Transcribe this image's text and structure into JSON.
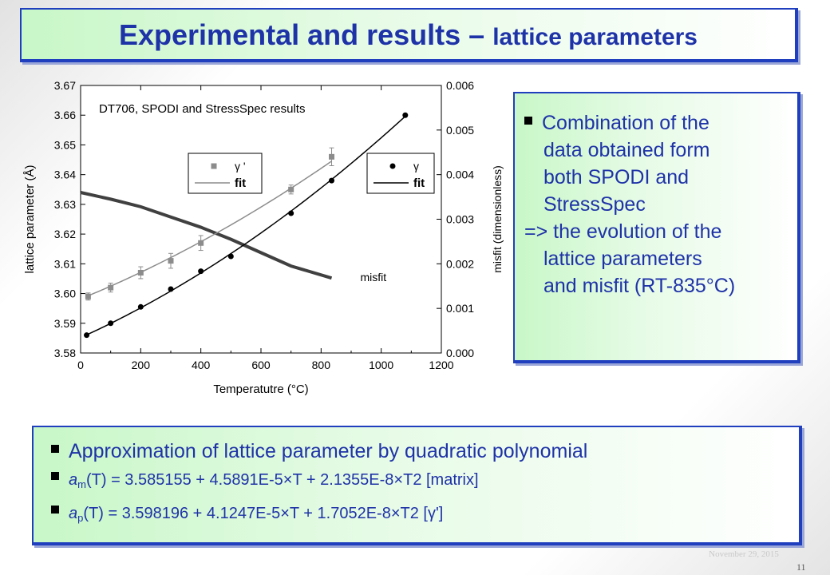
{
  "slide": {
    "title_main": "Experimental and results – ",
    "title_sub": "lattice parameters",
    "footer_date": "November 29, 2015",
    "page_number": "11"
  },
  "summary_box": {
    "bullet_line1": "Combination of the",
    "line2": "data obtained form",
    "line3": "both SPODI and",
    "line4": "StressSpec",
    "arrow_line": "=>  the evolution of the",
    "line6": "lattice parameters",
    "line7": "and misfit (RT-835°C)"
  },
  "approximation_box": {
    "heading": "Approximation of lattice parameter by quadratic polynomial",
    "eq_m_a": "a",
    "eq_m_sub": "m",
    "eq_m_rest": "(T) = 3.585155 + 4.5891E-5×T + 2.1355E-8×T2    [matrix]",
    "eq_p_a": "a",
    "eq_p_sub": "p",
    "eq_p_rest": "(T) = 3.598196 + 4.1247E-5×T + 1.7052E-8×T2     [γ']"
  },
  "colors": {
    "title_text": "#1f33a8",
    "box_border": "#1f3fbf",
    "gamma_prime_series": "#8c8c8c",
    "gamma_series": "#000000",
    "misfit_curve": "#404040"
  },
  "chart_data": {
    "type": "scatter",
    "annotation": "DT706, SPODI and StressSpec results",
    "xlabel": "Temperatutre (°C)",
    "ylabel": "lattice parameter (Å)",
    "y2label": "misfit (dimensionless)",
    "xlim": [
      0,
      1200
    ],
    "ylim": [
      3.58,
      3.67
    ],
    "y2lim": [
      0,
      0.006
    ],
    "xticks": [
      "0",
      "200",
      "400",
      "600",
      "800",
      "1000",
      "1200"
    ],
    "yticks": [
      "3.58",
      "3.59",
      "3.60",
      "3.61",
      "3.62",
      "3.63",
      "3.64",
      "3.65",
      "3.66",
      "3.67"
    ],
    "y2ticks": [
      "0.000",
      "0.001",
      "0.002",
      "0.003",
      "0.004",
      "0.005",
      "0.006"
    ],
    "grid": false,
    "series": [
      {
        "name": "γ '",
        "marker": "square",
        "color": "#8c8c8c",
        "axis": "left",
        "points": [
          {
            "x": 25,
            "y": 3.599,
            "err": 0.0012
          },
          {
            "x": 100,
            "y": 3.602,
            "err": 0.0015
          },
          {
            "x": 200,
            "y": 3.607,
            "err": 0.002
          },
          {
            "x": 300,
            "y": 3.611,
            "err": 0.0025
          },
          {
            "x": 400,
            "y": 3.617,
            "err": 0.0025
          },
          {
            "x": 700,
            "y": 3.635,
            "err": 0.0015
          },
          {
            "x": 835,
            "y": 3.646,
            "err": 0.003
          }
        ]
      },
      {
        "name": "γ",
        "marker": "circle",
        "color": "#000000",
        "axis": "left",
        "points": [
          {
            "x": 20,
            "y": 3.586
          },
          {
            "x": 100,
            "y": 3.59
          },
          {
            "x": 200,
            "y": 3.5955
          },
          {
            "x": 300,
            "y": 3.6015
          },
          {
            "x": 400,
            "y": 3.6075
          },
          {
            "x": 500,
            "y": 3.6125
          },
          {
            "x": 700,
            "y": 3.627
          },
          {
            "x": 835,
            "y": 3.638
          },
          {
            "x": 1080,
            "y": 3.66
          }
        ]
      }
    ],
    "fits": [
      {
        "name": "fit",
        "for": "γ '",
        "a0": 3.598196,
        "a1": 4.1247e-05,
        "a2": 1.7052e-08,
        "from": 25,
        "to": 835
      },
      {
        "name": "fit",
        "for": "γ",
        "a0": 3.585155,
        "a1": 4.5891e-05,
        "a2": 2.1355e-08,
        "from": 20,
        "to": 1080
      }
    ],
    "misfit_curve": {
      "label": "misfit",
      "axis": "right",
      "x": [
        0,
        100,
        200,
        300,
        400,
        500,
        600,
        700,
        835
      ],
      "y": [
        0.0036,
        0.00345,
        0.00328,
        0.00305,
        0.00282,
        0.00255,
        0.00225,
        0.00195,
        0.00168
      ]
    },
    "legends": [
      {
        "position": "middle-left",
        "entries": [
          "γ '",
          "fit"
        ]
      },
      {
        "position": "middle-right",
        "entries": [
          "γ",
          "fit"
        ]
      }
    ]
  }
}
